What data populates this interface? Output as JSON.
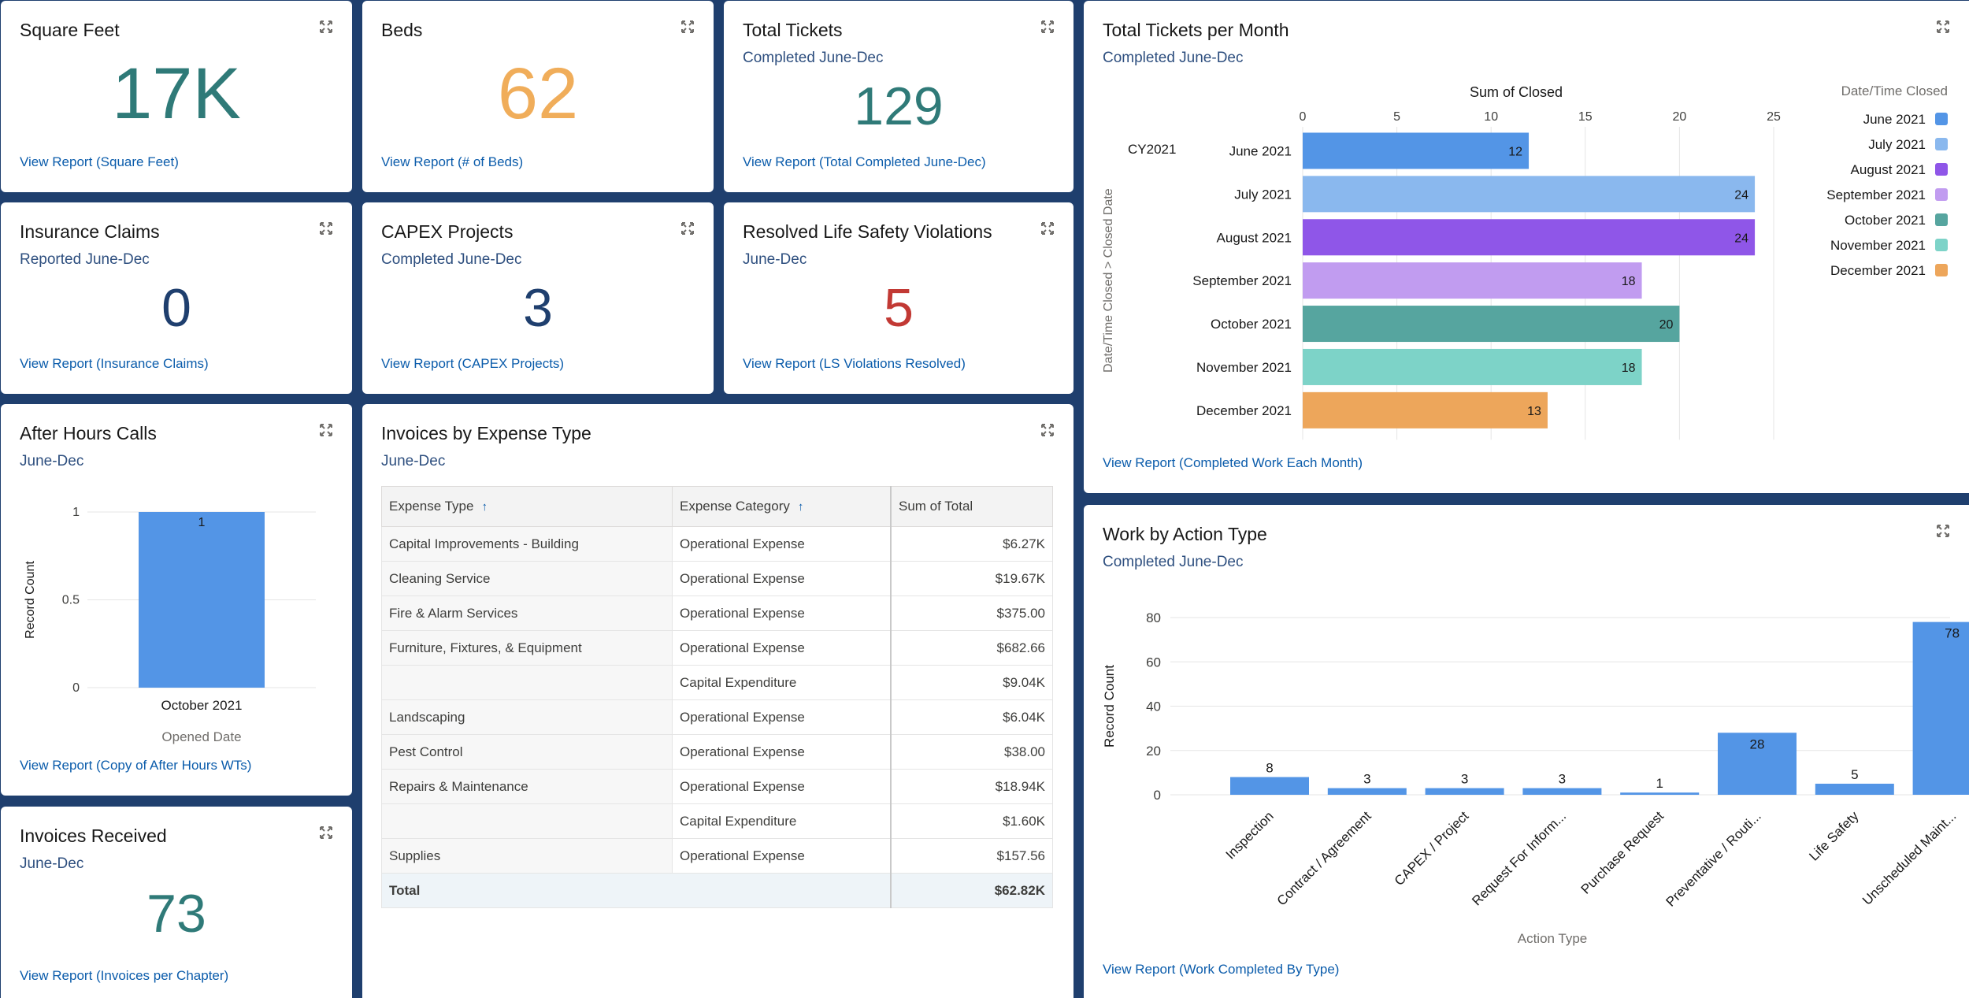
{
  "colors": {
    "accent": "#0b5cab",
    "teal_num": "#2f7a78",
    "orange_num": "#f0ad5a",
    "navy_num": "#1f3f6e",
    "red_num": "#c23934",
    "bar_blue": "#5395e6"
  },
  "square_feet": {
    "title": "Square Feet",
    "value": "17K",
    "link": "View Report (Square Feet)"
  },
  "beds": {
    "title": "Beds",
    "value": "62",
    "link": "View Report (# of Beds)"
  },
  "total_tickets": {
    "title": "Total Tickets",
    "subtitle": "Completed June-Dec",
    "value": "129",
    "link": "View Report (Total Completed June-Dec)"
  },
  "insurance_claims": {
    "title": "Insurance Claims",
    "subtitle": "Reported June-Dec",
    "value": "0",
    "link": "View Report (Insurance Claims)"
  },
  "capex_projects": {
    "title": "CAPEX Projects",
    "subtitle": "Completed June-Dec",
    "value": "3",
    "link": "View Report (CAPEX Projects)"
  },
  "ls_violations": {
    "title": "Resolved Life Safety Violations",
    "subtitle": "June-Dec",
    "value": "5",
    "link": "View Report (LS Violations Resolved)"
  },
  "after_hours": {
    "title": "After Hours Calls",
    "subtitle": "June-Dec",
    "link": "View Report (Copy of After Hours WTs)"
  },
  "invoices_received": {
    "title": "Invoices Received",
    "subtitle": "June-Dec",
    "value": "73",
    "link": "View Report (Invoices per Chapter)"
  },
  "invoices_by_type": {
    "title": "Invoices by Expense Type",
    "subtitle": "June-Dec",
    "headers": [
      "Expense Type",
      "Expense Category",
      "Sum of Total"
    ],
    "sort_icon": "↑",
    "rows": [
      {
        "type": "Capital Improvements - Building",
        "category": "Operational Expense",
        "total": "$6.27K"
      },
      {
        "type": "Cleaning Service",
        "category": "Operational Expense",
        "total": "$19.67K"
      },
      {
        "type": "Fire & Alarm Services",
        "category": "Operational Expense",
        "total": "$375.00"
      },
      {
        "type": "Furniture, Fixtures, & Equipment",
        "category": "Operational Expense",
        "total": "$682.66"
      },
      {
        "type": "",
        "category": "Capital Expenditure",
        "total": "$9.04K"
      },
      {
        "type": "Landscaping",
        "category": "Operational Expense",
        "total": "$6.04K"
      },
      {
        "type": "Pest Control",
        "category": "Operational Expense",
        "total": "$38.00"
      },
      {
        "type": "Repairs & Maintenance",
        "category": "Operational Expense",
        "total": "$18.94K"
      },
      {
        "type": "",
        "category": "Capital Expenditure",
        "total": "$1.60K"
      },
      {
        "type": "Supplies",
        "category": "Operational Expense",
        "total": "$157.56"
      }
    ],
    "total_label": "Total",
    "total_value": "$62.82K"
  },
  "tickets_per_month": {
    "title": "Total Tickets per Month",
    "subtitle": "Completed June-Dec",
    "link": "View Report (Completed Work Each Month)"
  },
  "work_by_action": {
    "title": "Work by Action Type",
    "subtitle": "Completed June-Dec",
    "link": "View Report (Work Completed By Type)"
  },
  "chart_data": [
    {
      "id": "after_hours_calls",
      "type": "bar",
      "categories": [
        "October 2021"
      ],
      "values": [
        1
      ],
      "xlabel": "Opened Date",
      "ylabel": "Record Count",
      "ylim": [
        0,
        1
      ],
      "yticks": [
        "0",
        "0.5",
        "1"
      ],
      "color": "#5395e6"
    },
    {
      "id": "tickets_per_month",
      "type": "bar",
      "orientation": "horizontal",
      "group_label": "CY2021",
      "categories": [
        "June 2021",
        "July 2021",
        "August 2021",
        "September 2021",
        "October 2021",
        "November 2021",
        "December 2021"
      ],
      "values": [
        12,
        24,
        24,
        18,
        20,
        18,
        13
      ],
      "colors": [
        "#5395e6",
        "#8ab8ee",
        "#8f56e8",
        "#c19cf0",
        "#56a59f",
        "#7dd3c8",
        "#eda65b"
      ],
      "xlabel": "Sum of Closed",
      "ylabel": "Date/Time Closed  >  Closed Date",
      "xlim": [
        0,
        25
      ],
      "xticks": [
        "0",
        "5",
        "10",
        "15",
        "20",
        "25"
      ],
      "legend_title": "Date/Time Closed",
      "legend_position": "right"
    },
    {
      "id": "work_by_action",
      "type": "bar",
      "categories": [
        "Inspection",
        "Contract / Agreement",
        "CAPEX / Project",
        "Request For Inform...",
        "Purchase Request",
        "Preventative / Routi...",
        "Life Safety",
        "Unscheduled Maint..."
      ],
      "values": [
        8,
        3,
        3,
        3,
        1,
        28,
        5,
        78
      ],
      "xlabel": "Action Type",
      "ylabel": "Record Count",
      "ylim": [
        0,
        80
      ],
      "yticks": [
        "0",
        "20",
        "40",
        "60",
        "80"
      ],
      "color": "#5395e6"
    }
  ]
}
